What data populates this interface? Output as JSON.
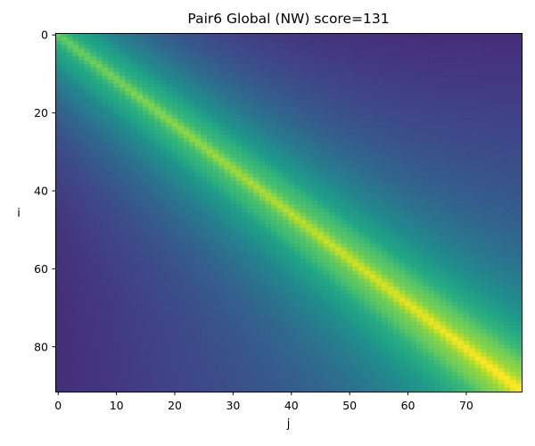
{
  "chart_data": {
    "type": "heatmap",
    "title": "Pair6 Global (NW) score=131",
    "xlabel": "j",
    "ylabel": "i",
    "x_range": [
      0,
      79
    ],
    "y_range": [
      0,
      91
    ],
    "xlim": [
      -0.5,
      79.5
    ],
    "ylim": [
      91.5,
      -0.5
    ],
    "y_inverted": true,
    "colormap": "viridis",
    "colorbar": false,
    "value_model": "normalized global-alignment score matrix; high along the main diagonal, rising toward the bottom-right corner",
    "xticks": [
      "0",
      "10",
      "20",
      "30",
      "40",
      "50",
      "60",
      "70"
    ],
    "xtick_values": [
      0,
      10,
      20,
      30,
      40,
      50,
      60,
      70
    ],
    "yticks": [
      "0",
      "20",
      "40",
      "60",
      "80"
    ],
    "ytick_values": [
      0,
      20,
      40,
      60,
      80
    ],
    "grid": false,
    "legend": "none"
  }
}
